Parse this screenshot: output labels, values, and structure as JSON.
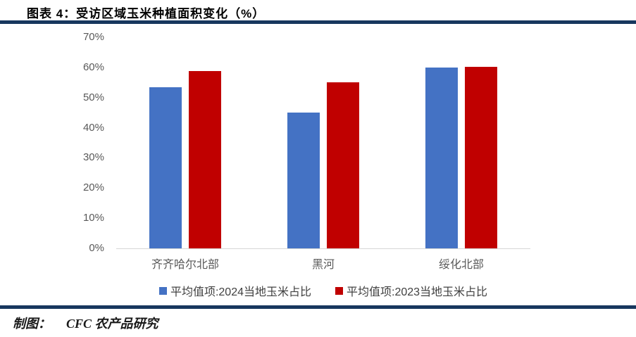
{
  "figure": {
    "title": "图表 4：受访区域玉米种植面积变化（%）",
    "footer_label": "制图：",
    "footer_source": "CFC 农产品研究"
  },
  "colors": {
    "rule_navy": "#17375E",
    "axis_line": "#D6D6D6",
    "axis_text": "#595959",
    "legend_text": "#404040",
    "series_2024_blue": "#4472C4",
    "series_2023_red": "#C00000"
  },
  "chart_data": {
    "type": "bar",
    "title": "受访区域玉米种植面积变化（%）",
    "categories": [
      "齐齐哈尔北部",
      "黑河",
      "绥化北部"
    ],
    "series": [
      {
        "name": "平均值项:2024当地玉米占比",
        "color": "#4472C4",
        "values": [
          53.5,
          45.0,
          60.0
        ]
      },
      {
        "name": "平均值项:2023当地玉米占比",
        "color": "#C00000",
        "values": [
          58.7,
          55.0,
          60.3
        ]
      }
    ],
    "xlabel": "",
    "ylabel": "",
    "ylim": [
      0,
      70
    ],
    "ytick_step": 10,
    "yticks": [
      "0%",
      "10%",
      "20%",
      "30%",
      "40%",
      "50%",
      "60%",
      "70%"
    ],
    "grid": false,
    "legend_position": "bottom"
  }
}
